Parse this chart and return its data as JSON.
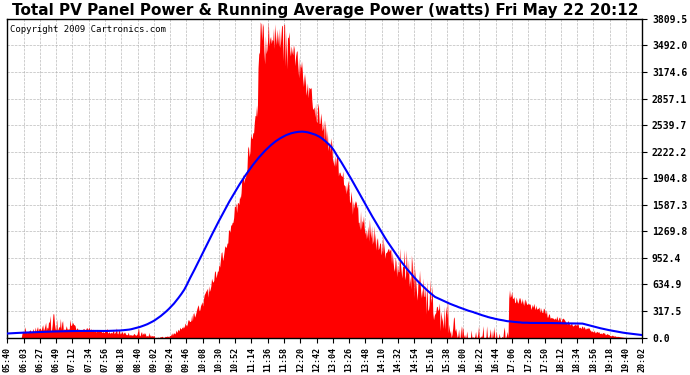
{
  "title": "Total PV Panel Power & Running Average Power (watts) Fri May 22 20:12",
  "copyright": "Copyright 2009 Cartronics.com",
  "y_max": 3809.5,
  "y_ticks": [
    0.0,
    317.5,
    634.9,
    952.4,
    1269.8,
    1587.3,
    1904.8,
    2222.2,
    2539.7,
    2857.1,
    3174.6,
    3492.0,
    3809.5
  ],
  "x_labels": [
    "05:40",
    "06:03",
    "06:27",
    "06:49",
    "07:12",
    "07:34",
    "07:56",
    "08:18",
    "08:40",
    "09:02",
    "09:24",
    "09:46",
    "10:08",
    "10:30",
    "10:52",
    "11:14",
    "11:36",
    "11:58",
    "12:20",
    "12:42",
    "13:04",
    "13:26",
    "13:48",
    "14:10",
    "14:32",
    "14:54",
    "15:16",
    "15:38",
    "16:00",
    "16:22",
    "16:44",
    "17:06",
    "17:28",
    "17:50",
    "18:12",
    "18:34",
    "18:56",
    "19:18",
    "19:40",
    "20:02"
  ],
  "bar_color": "#FF0000",
  "line_color": "#0000FF",
  "background_color": "#FFFFFF",
  "grid_color": "#AAAAAA",
  "title_fontsize": 11,
  "copyright_fontsize": 6.5
}
